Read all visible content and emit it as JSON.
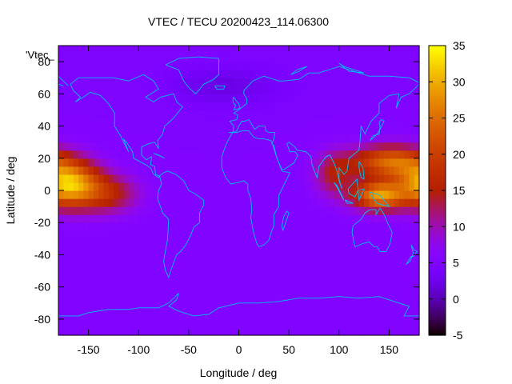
{
  "chart_data": {
    "type": "heatmap",
    "title": "VTEC / TECU 20200423_114.06300",
    "xlabel": "Longitude / deg",
    "ylabel": "Latitude / deg",
    "key_label": "'Vtec_",
    "xlim": [
      -180,
      180
    ],
    "ylim": [
      -90,
      90
    ],
    "x_ticks": [
      -150,
      -100,
      -50,
      0,
      50,
      100,
      150
    ],
    "y_ticks": [
      -80,
      -60,
      -40,
      -20,
      0,
      20,
      40,
      60,
      80
    ],
    "x_tick_labels": [
      "-150",
      "-100",
      "-50",
      "0",
      "50",
      "100",
      "150"
    ],
    "y_tick_labels": [
      "-80",
      "-60",
      "-40",
      "-20",
      "0",
      "20",
      "40",
      "60",
      "80"
    ],
    "colorbar": {
      "range": [
        -5,
        35
      ],
      "ticks": [
        -5,
        0,
        5,
        10,
        15,
        20,
        25,
        30,
        35
      ],
      "tick_labels": [
        "-5",
        "0",
        "5",
        "10",
        "15",
        "20",
        "25",
        "30",
        "35"
      ],
      "palette": "black-purple-red-orange-yellow"
    },
    "grid": false,
    "overlay": "coastlines",
    "overlay_color": "#00c0ff",
    "background_level": 5,
    "features": [
      {
        "name": "western-crest",
        "lon": -170,
        "lat": 4,
        "peak": 26,
        "lon_sigma": 30,
        "lat_sigma": 14
      },
      {
        "name": "western-tail",
        "lon": -130,
        "lat": -2,
        "peak": 10,
        "lon_sigma": 30,
        "lat_sigma": 12
      },
      {
        "name": "eastern-north-crest",
        "lon": 150,
        "lat": 18,
        "peak": 19,
        "lon_sigma": 38,
        "lat_sigma": 10
      },
      {
        "name": "eastern-south-crest",
        "lon": 140,
        "lat": -3,
        "peak": 23,
        "lon_sigma": 26,
        "lat_sigma": 9
      },
      {
        "name": "eastern-tail",
        "lon": 95,
        "lat": 10,
        "peak": 9,
        "lon_sigma": 20,
        "lat_sigma": 14
      },
      {
        "name": "arctic-low",
        "lon": -15,
        "lat": 65,
        "peak": -3,
        "lon_sigma": 55,
        "lat_sigma": 12
      }
    ]
  }
}
